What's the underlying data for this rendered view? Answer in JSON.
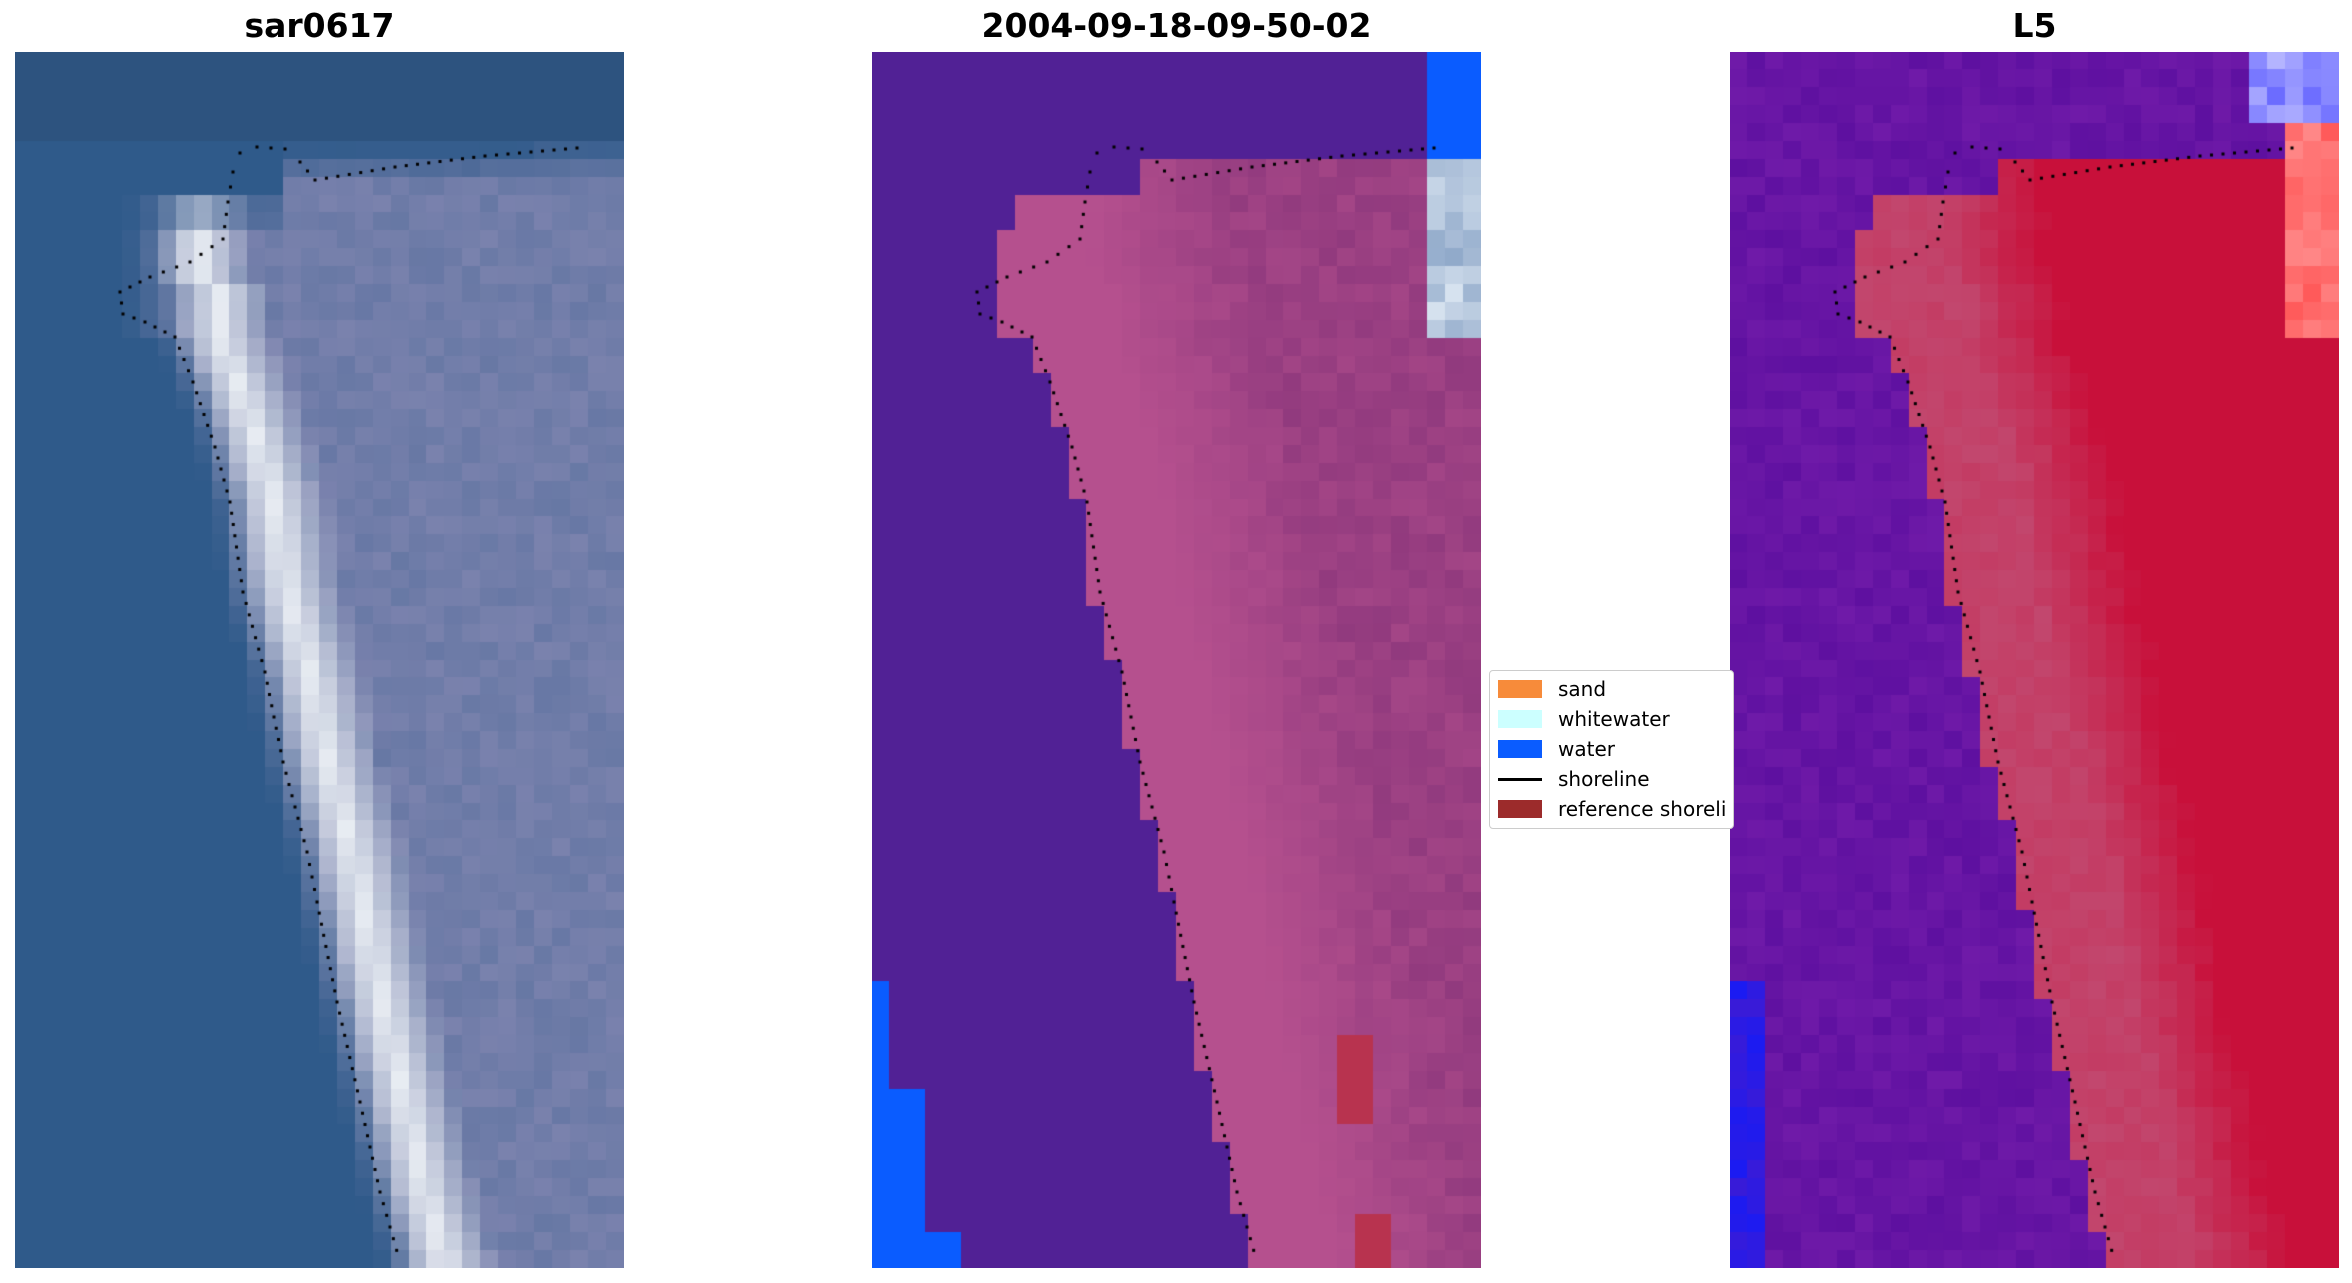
{
  "panels": [
    {
      "title": "sar0617",
      "kind": "rgb"
    },
    {
      "title": "2004-09-18-09-50-02",
      "kind": "classified"
    },
    {
      "title": "L5",
      "kind": "index"
    }
  ],
  "legend": {
    "items": [
      {
        "label": "sand",
        "color": "#f78b3a",
        "kind": "patch"
      },
      {
        "label": "whitewater",
        "color": "#ccffff",
        "kind": "patch"
      },
      {
        "label": "water",
        "color": "#0a5cff",
        "kind": "patch"
      },
      {
        "label": "shoreline",
        "color": "#000000",
        "kind": "line"
      },
      {
        "label": "reference shoreli",
        "color": "#9c2b2b",
        "kind": "patch"
      }
    ]
  },
  "colors": {
    "ocean": "#2f5a8a",
    "deep_purple": "#512195",
    "shore_pink": "#b5508e",
    "index_red": "#c8103a",
    "water_blue": "#0a5cff"
  }
}
